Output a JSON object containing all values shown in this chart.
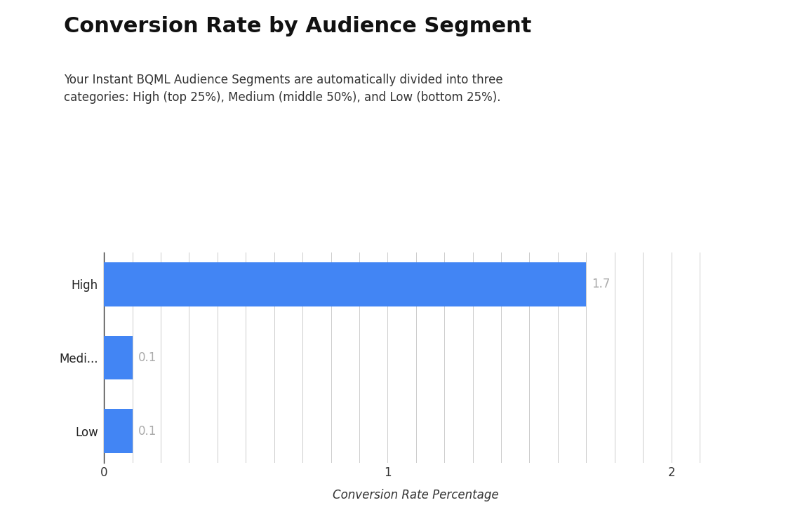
{
  "title": "Conversion Rate by Audience Segment",
  "subtitle": "Your Instant BQML Audience Segments are automatically divided into three\ncategories: High (top 25%), Medium (middle 50%), and Low (bottom 25%).",
  "categories": [
    "Low",
    "Medi...",
    "High"
  ],
  "values": [
    0.1,
    0.1,
    1.7
  ],
  "bar_color": "#4285f4",
  "xlabel": "Conversion Rate Percentage",
  "xlim": [
    0,
    2.2
  ],
  "xticks": [
    0,
    1,
    2
  ],
  "bar_labels": [
    "0.1",
    "0.1",
    "1.7"
  ],
  "bar_label_color": "#aaaaaa",
  "title_fontsize": 22,
  "subtitle_fontsize": 12,
  "xlabel_fontsize": 12,
  "tick_fontsize": 12,
  "background_color": "#ffffff",
  "grid_color": "#cccccc"
}
